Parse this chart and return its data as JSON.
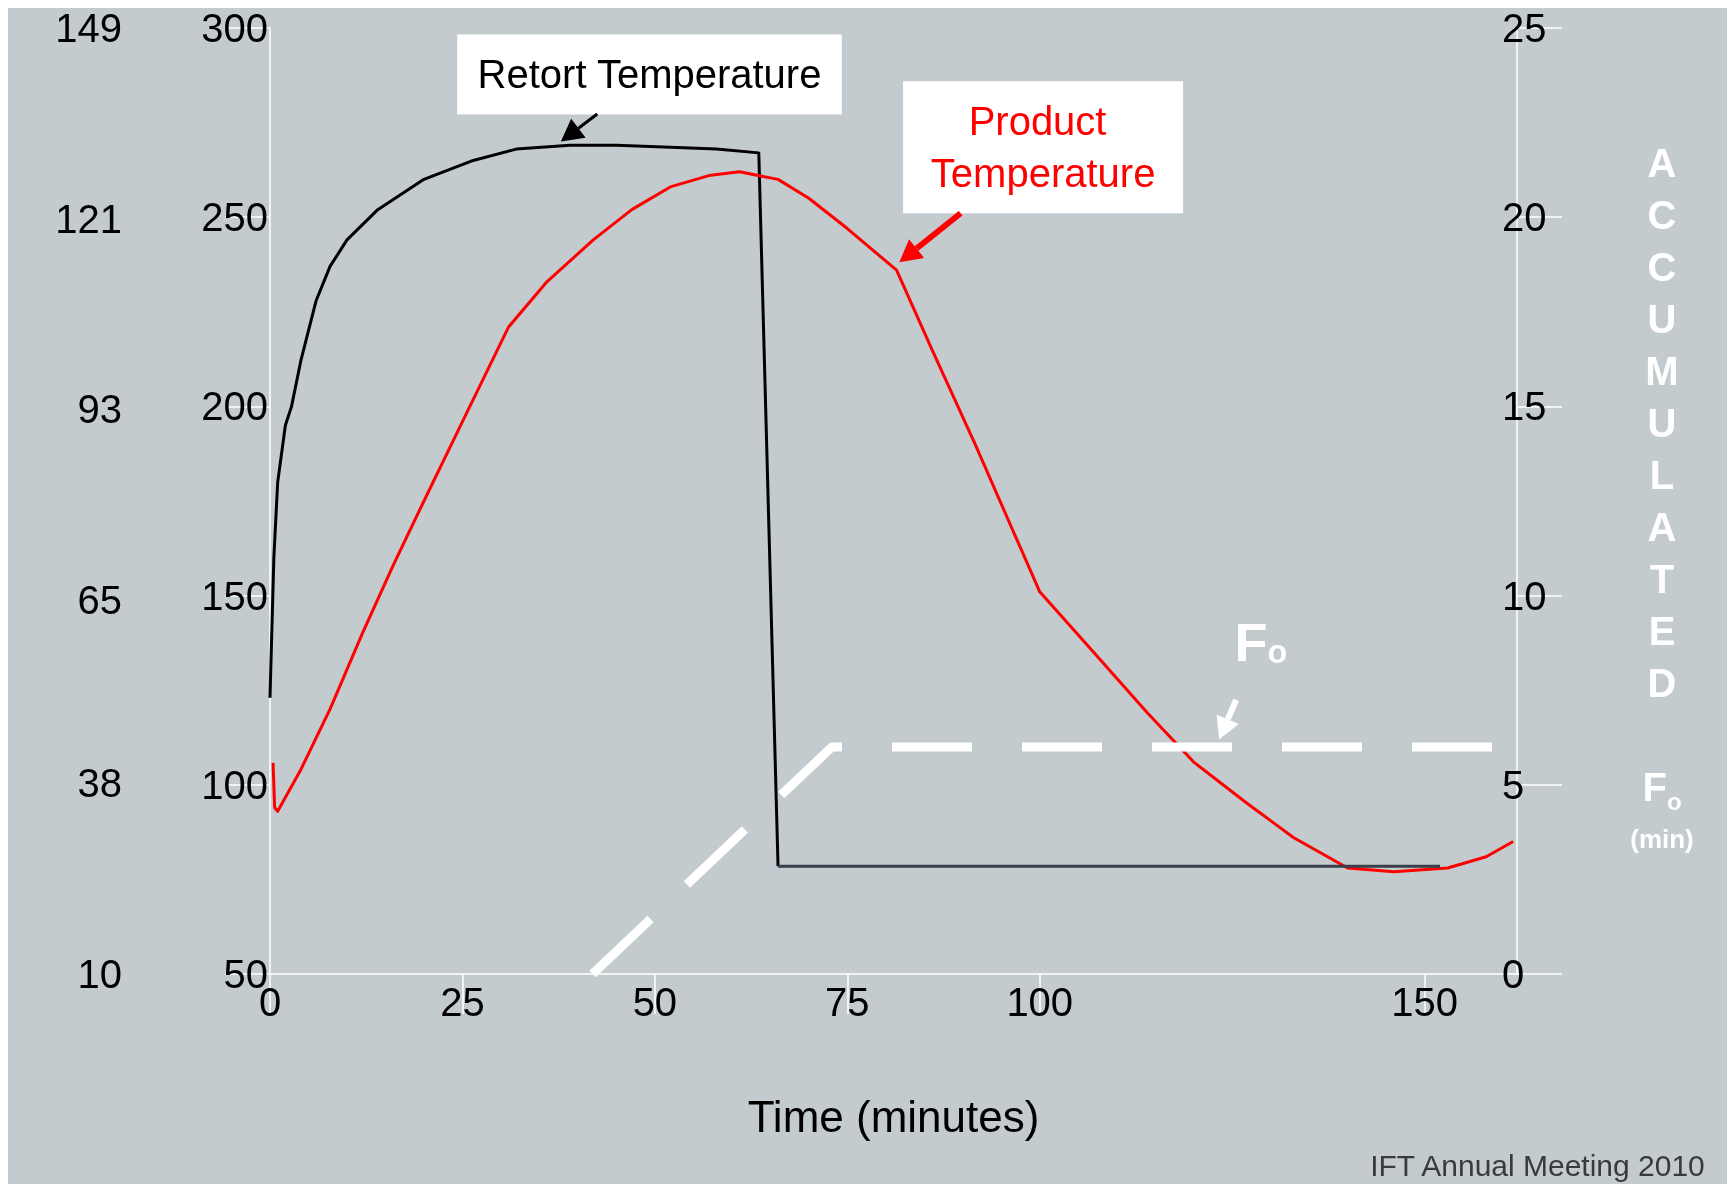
{
  "chart_data": {
    "type": "line",
    "xlabel": "Time (minutes)",
    "y3label": "ACCUMULATED F$_{o}$ (min)",
    "xlim": [
      0,
      162
    ],
    "xticks": [
      0,
      25,
      50,
      75,
      100,
      150
    ],
    "ylim": [
      50,
      300
    ],
    "yticks": [
      50,
      100,
      150,
      200,
      250,
      300
    ],
    "y2lim": [
      10,
      149
    ],
    "y2ticks": [
      10,
      38,
      65,
      93,
      121,
      149
    ],
    "y3lim": [
      0,
      25
    ],
    "y3ticks": [
      0,
      5,
      10,
      15,
      20,
      25
    ],
    "grid": false,
    "legend": false,
    "marker": "none",
    "series": [
      {
        "name": "Retort Temperature",
        "color": "#000000",
        "line_style": "solid",
        "x": [
          0,
          0.5,
          1,
          2,
          2.8,
          4,
          6,
          7.8,
          10,
          14,
          20,
          26.4,
          32,
          39,
          45,
          52,
          58,
          63.5,
          66
        ],
        "values": [
          123,
          160,
          180,
          195,
          200,
          212,
          228,
          237,
          244,
          252,
          260,
          265,
          268,
          269,
          269,
          268.5,
          268,
          267,
          78.5
        ]
      },
      {
        "name": "Product Temperature",
        "color": "#ff0000",
        "line_style": "solid",
        "x": [
          0.4,
          0.6,
          1,
          4,
          7.8,
          12,
          16,
          20,
          25,
          31,
          36,
          42,
          47,
          52,
          57,
          61,
          66,
          70,
          75,
          81.4,
          86,
          91.6,
          100,
          107,
          114,
          120,
          127,
          133,
          140,
          146,
          153,
          158,
          161.5
        ],
        "values": [
          105.8,
          94,
          93,
          104,
          120,
          140,
          158,
          175,
          196,
          221,
          233,
          244,
          252,
          258,
          261,
          262,
          260,
          255,
          247,
          236,
          215,
          190,
          151,
          135,
          119,
          106,
          95,
          86,
          78,
          77,
          78,
          81,
          85
        ]
      },
      {
        "color": "#ffffff",
        "line_style": "dashed",
        "axis": "y3",
        "x": [
          41.9,
          73,
          161
        ],
        "values": [
          0,
          6,
          6
        ]
      },
      {
        "color": "#3a3d4a",
        "line_style": "solid",
        "x": [
          66,
          152
        ],
        "values": [
          78.5,
          78.5
        ]
      }
    ],
    "annotations": [
      "F$_{o}$",
      "IFT Annual Meeting 2010"
    ]
  }
}
